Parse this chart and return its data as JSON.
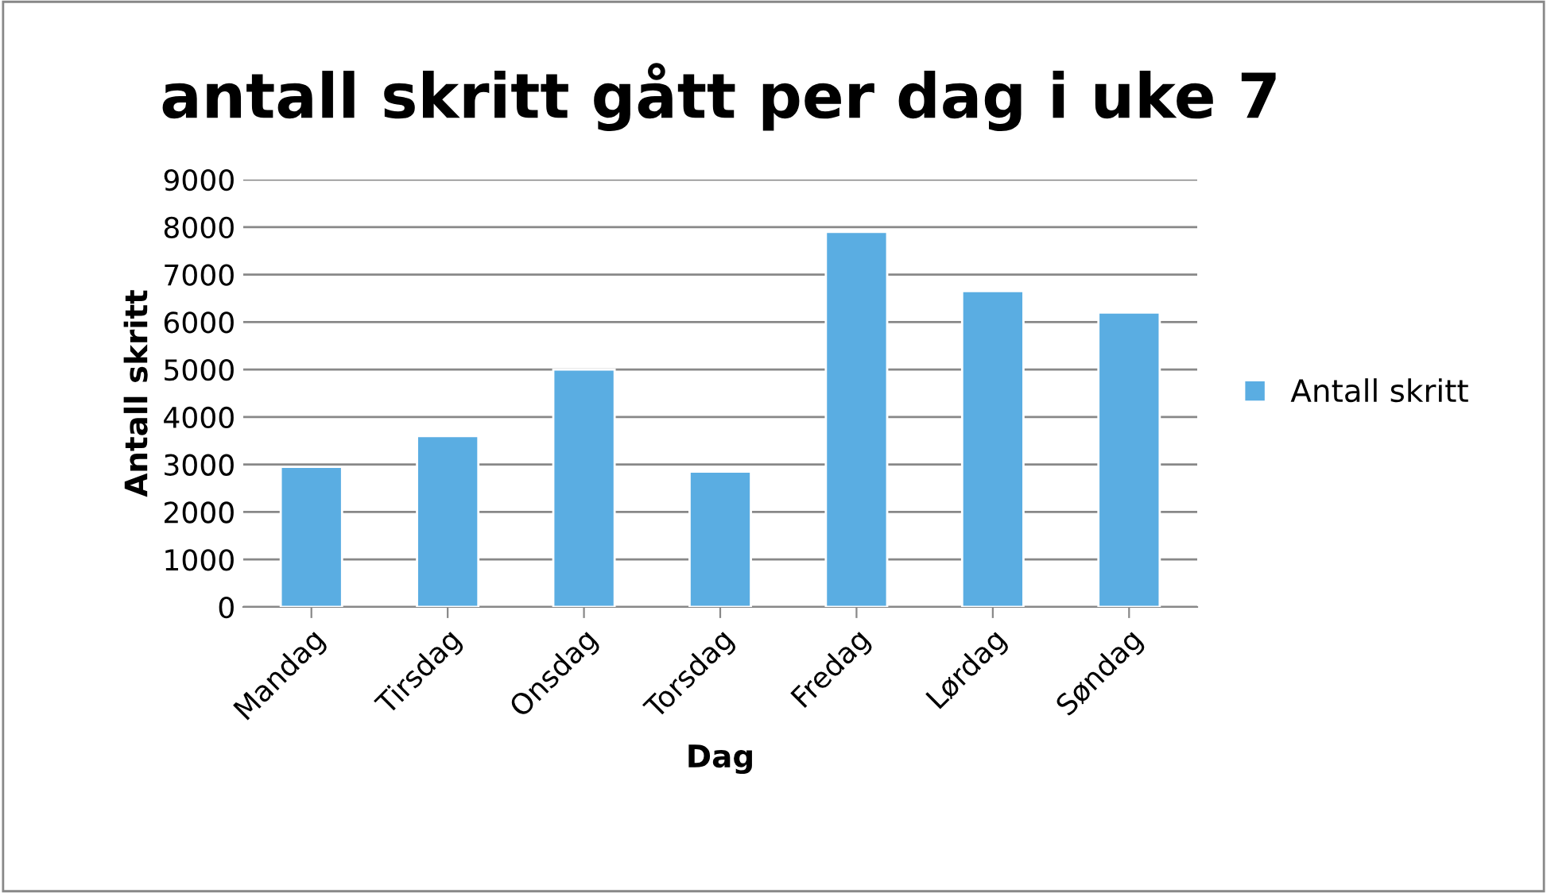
{
  "chart_data": {
    "type": "bar",
    "title": "antall skritt gått per dag i uke 7",
    "xlabel": "Dag",
    "ylabel": "Antall skritt",
    "categories": [
      "Mandag",
      "Tirsdag",
      "Onsdag",
      "Torsdag",
      "Fredag",
      "Lørdag",
      "Søndag"
    ],
    "series": [
      {
        "name": "Antall skritt",
        "color": "#5aade2",
        "values": [
          2950,
          3600,
          5000,
          2850,
          7900,
          6650,
          6200
        ]
      }
    ],
    "ylim": [
      0,
      9000
    ],
    "yticks": [
      0,
      1000,
      2000,
      3000,
      4000,
      5000,
      6000,
      7000,
      8000,
      9000
    ],
    "grid": "y",
    "legend": "right"
  }
}
